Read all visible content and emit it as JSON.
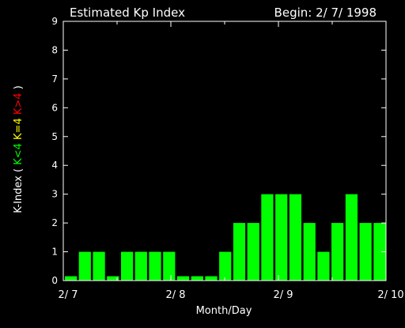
{
  "header": {
    "title": "Estimated Kp Index",
    "begin": "Begin: 2/ 7/ 1998"
  },
  "colors": {
    "background": "#000000",
    "axis": "#ffffff",
    "bar": "#00ff00",
    "legend_low": "#00ff00",
    "legend_mid": "#ffff00",
    "legend_high": "#ff0000"
  },
  "chart_data": {
    "type": "bar",
    "title": "Estimated Kp Index",
    "subtitle": "Begin: 2/ 7/ 1998",
    "xlabel": "Month/Day",
    "ylabel_parts": [
      {
        "text": "K-Index ( ",
        "color": "#ffffff"
      },
      {
        "text": "K<4 ",
        "color": "#00ff00"
      },
      {
        "text": "K=4 ",
        "color": "#ffff00"
      },
      {
        "text": "K>4",
        "color": "#ff0000"
      },
      {
        "text": " )",
        "color": "#ffffff"
      }
    ],
    "ylim": [
      0,
      9
    ],
    "yticks": [
      "0",
      "1",
      "2",
      "3",
      "4",
      "5",
      "6",
      "7",
      "8",
      "9"
    ],
    "xlim": [
      0,
      24
    ],
    "xticks": [
      {
        "at": 0,
        "label": "2/ 7"
      },
      {
        "at": 8,
        "label": "2/ 8"
      },
      {
        "at": 16,
        "label": "2/ 9"
      },
      {
        "at": 24,
        "label": "2/ 10"
      }
    ],
    "minor_xticks": [
      4,
      12,
      20
    ],
    "values": [
      0.15,
      1,
      1,
      0.15,
      1,
      1,
      1,
      1,
      0.15,
      0.15,
      0.15,
      1,
      2,
      2,
      3,
      3,
      3,
      2,
      1,
      2,
      3,
      2,
      2
    ],
    "bar_color": "#00ff00"
  }
}
